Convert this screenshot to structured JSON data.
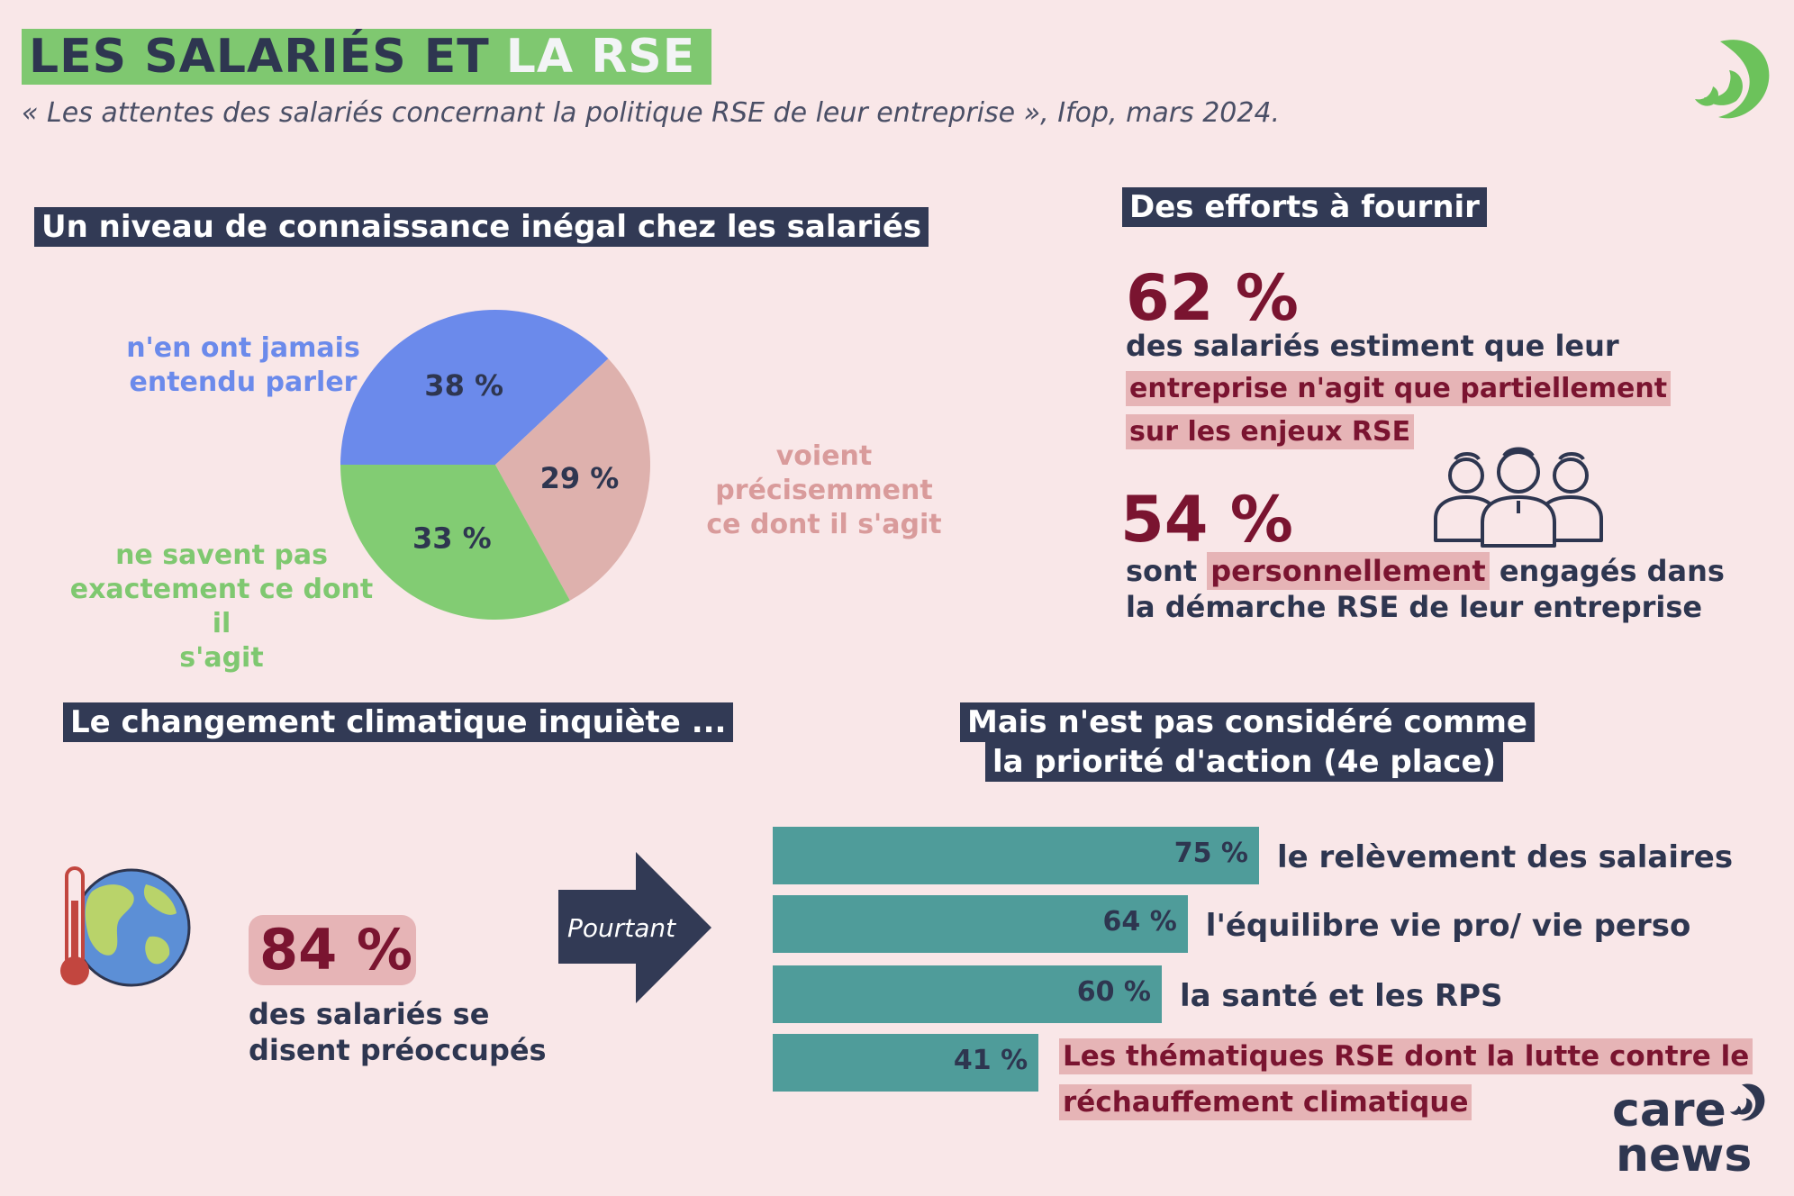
{
  "header": {
    "title_part1": "LES SALARIÉS ET",
    "title_part2": "LA RSE",
    "subtitle": "« Les attentes des salariés concernant la politique RSE de leur entreprise », Ifop, mars 2024."
  },
  "section1": {
    "title": "Un niveau de connaissance inégal chez les salariés"
  },
  "chart_data": [
    {
      "type": "pie",
      "title": "Un niveau de connaissance inégal chez les salariés",
      "categories": [
        "n'en ont jamais entendu parler",
        "voient précisemment ce dont il s'agit",
        "ne savent pas exactement ce dont il s'agit"
      ],
      "values": [
        38,
        29,
        33
      ],
      "value_labels": [
        "38 %",
        "29 %",
        "33 %"
      ],
      "label_lines": [
        [
          "n'en ont jamais",
          "entendu parler"
        ],
        [
          "voient précisemment",
          "ce dont il s'agit"
        ],
        [
          "ne savent pas",
          "exactement ce dont il",
          "s'agit"
        ]
      ],
      "colors": [
        "#6b8aeb",
        "#deb1ad",
        "#82cc73"
      ],
      "label_colors": [
        "#6b8aeb",
        "#d99b9b",
        "#7fc870"
      ]
    },
    {
      "type": "bar",
      "orientation": "horizontal",
      "title": "Mais n'est pas considéré comme la priorité d'action (4e place)",
      "categories": [
        "le relèvement des salaires",
        "l'équilibre vie pro/ vie perso",
        "la santé et les RPS",
        "Les thématiques RSE dont la lutte contre le réchauffement climatique"
      ],
      "values": [
        75,
        64,
        60,
        41
      ],
      "value_labels": [
        "75 %",
        "64 %",
        "60 %",
        "41 %"
      ],
      "color": "#4f9c9a",
      "unit": "%"
    }
  ],
  "section2": {
    "title": "Des efforts à fournir",
    "stat1_value": "62 %",
    "stat1_text": "des salariés estiment que leur",
    "stat1_highlight_line1": "entreprise n'agit que partiellement",
    "stat1_highlight_line2": "sur les enjeux RSE",
    "stat2_value": "54 %",
    "stat2_pre": "sont",
    "stat2_highlight": "personnellement",
    "stat2_post": "engagés dans",
    "stat2_line2": "la démarche RSE de leur entreprise"
  },
  "section3": {
    "title": "Le changement climatique inquiète ...",
    "stat_value": "84 %",
    "stat_line1": "des salariés se",
    "stat_line2": "disent préoccupés",
    "arrow_label": "Pourtant"
  },
  "section4": {
    "title_line1": "Mais n'est pas considéré comme",
    "title_line2": "la priorité d'action (4e place)",
    "last_label_line1": "Les thématiques RSE dont la lutte contre le",
    "last_label_line2": "réchauffement climatique"
  },
  "logo": {
    "line1": "care",
    "line2": "news"
  },
  "colors": {
    "accent_green": "#7fc870",
    "navy": "#323a55",
    "burgundy": "#7a1430",
    "teal": "#4f9c9a",
    "highlight": "#e6b4b6"
  }
}
